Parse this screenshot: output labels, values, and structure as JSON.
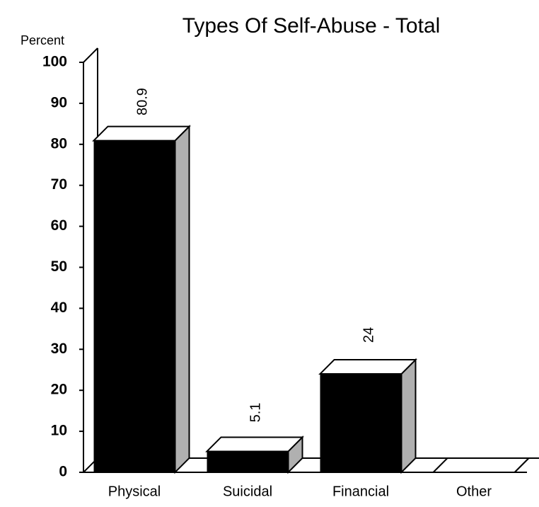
{
  "chart_data": {
    "type": "bar3d",
    "title": "Types Of Self-Abuse - Total",
    "y_label": "Percent",
    "categories": [
      "Physical",
      "Suicidal",
      "Financial",
      "Other"
    ],
    "values": [
      80.9,
      5.1,
      24,
      0
    ],
    "value_labels": [
      "80.9",
      "5.1",
      "24",
      null
    ],
    "color": "#000000",
    "side_color": "#b0b0b0",
    "ylim": [
      0,
      100
    ],
    "yticks": [
      0,
      10,
      20,
      30,
      40,
      50,
      60,
      70,
      80,
      90,
      100
    ]
  }
}
